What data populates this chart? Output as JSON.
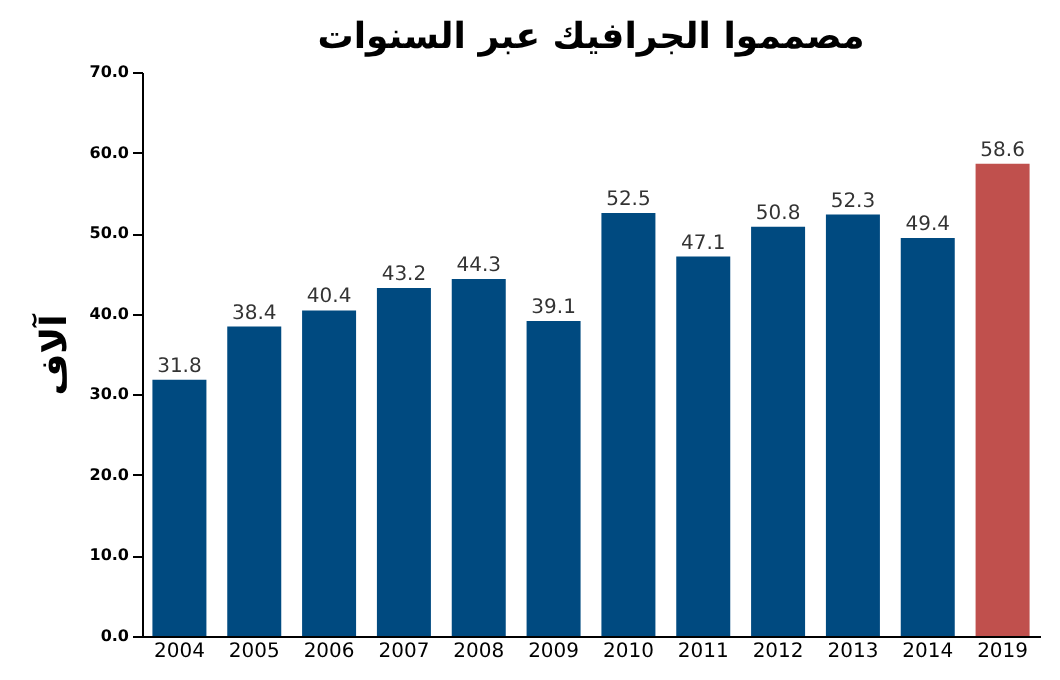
{
  "chart_data": {
    "type": "bar",
    "title": "مصمموا الجرافيك عبر السنوات",
    "ylabel": "آلاف",
    "categories": [
      "2004",
      "2005",
      "2006",
      "2007",
      "2008",
      "2009",
      "2010",
      "2011",
      "2012",
      "2013",
      "2014",
      "2019"
    ],
    "values": [
      31.8,
      38.4,
      40.4,
      43.2,
      44.3,
      39.1,
      52.5,
      47.1,
      50.8,
      52.3,
      49.4,
      58.6
    ],
    "colors": [
      "#004a80",
      "#004a80",
      "#004a80",
      "#004a80",
      "#004a80",
      "#004a80",
      "#004a80",
      "#004a80",
      "#004a80",
      "#004a80",
      "#004a80",
      "#c0504d"
    ],
    "ylim": [
      0,
      70
    ],
    "yticks": [
      {
        "value": 0,
        "label": "0.0"
      },
      {
        "value": 10,
        "label": "10.0"
      },
      {
        "value": 20,
        "label": "20.0"
      },
      {
        "value": 30,
        "label": "30.0"
      },
      {
        "value": 40,
        "label": "40.0"
      },
      {
        "value": 50,
        "label": "50.0"
      },
      {
        "value": 60,
        "label": "60.0"
      },
      {
        "value": 70,
        "label": "70.0"
      }
    ],
    "data_labels": true,
    "grid": false
  }
}
